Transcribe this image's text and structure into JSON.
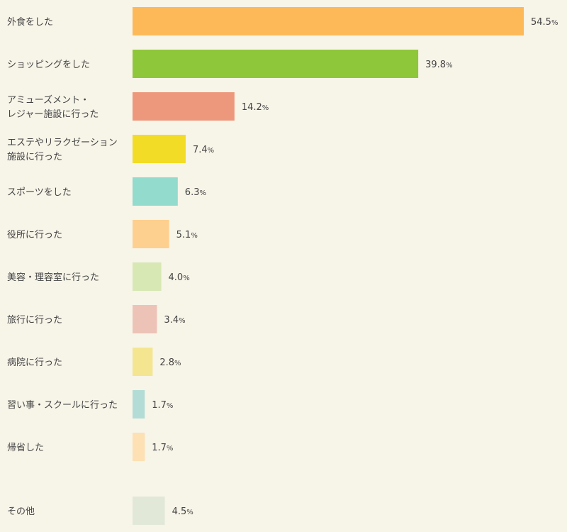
{
  "chart_data": {
    "type": "bar",
    "orientation": "horizontal",
    "title": "",
    "xlabel": "",
    "ylabel": "",
    "unit": "%",
    "xlim": [
      0,
      54.5
    ],
    "grid": false,
    "legend": "none",
    "categories": [
      "外食をした",
      "ショッピングをした",
      "アミューズメント・\nレジャー施設に行った",
      "エステやリラクゼーション\n施設に行った",
      "スポーツをした",
      "役所に行った",
      "美容・理容室に行った",
      "旅行に行った",
      "病院に行った",
      "習い事・スクールに行った",
      "帰省した",
      "その他"
    ],
    "values": [
      54.5,
      39.8,
      14.2,
      7.4,
      6.3,
      5.1,
      4.0,
      3.4,
      2.8,
      1.7,
      1.7,
      4.5
    ],
    "value_labels": [
      "54.5",
      "39.8",
      "14.2",
      "7.4",
      "6.3",
      "5.1",
      "4.0",
      "3.4",
      "2.8",
      "1.7",
      "1.7",
      "4.5"
    ],
    "colors": [
      "#fdb957",
      "#8fc73a",
      "#ed987c",
      "#f3dc25",
      "#93dbcc",
      "#fdd08f",
      "#d7e8b4",
      "#edc3b7",
      "#f4e690",
      "#b4dcd6",
      "#fde0b3",
      "#e2e8d8"
    ]
  }
}
